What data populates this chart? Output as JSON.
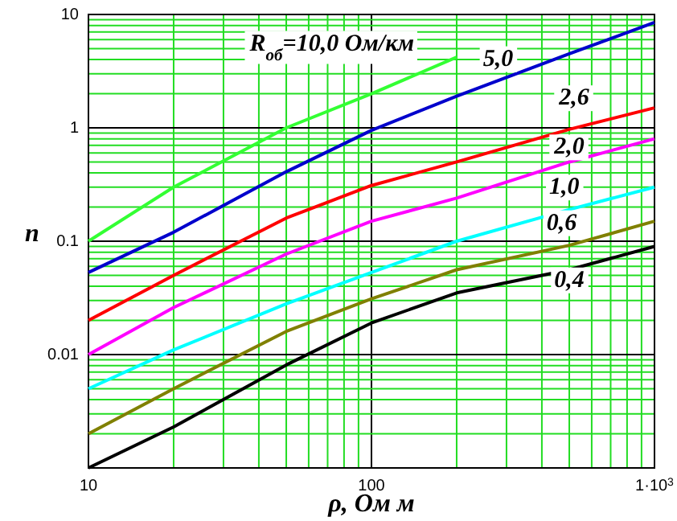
{
  "chart_data": {
    "type": "line",
    "xlabel": "ρ, Ом м",
    "ylabel": "n",
    "log": "xy",
    "grid": true,
    "marker": "none",
    "line_style": "solid",
    "xlim": [
      10,
      1000
    ],
    "ylim": [
      0.001,
      10
    ],
    "xticks": [
      10,
      {
        "value": 20,
        "label": null
      },
      {
        "value": 30,
        "label": null
      },
      {
        "value": 40,
        "label": null
      },
      {
        "value": 50,
        "label": null
      },
      {
        "value": 60,
        "label": null
      },
      {
        "value": 70,
        "label": null
      },
      {
        "value": 80,
        "label": null
      },
      {
        "value": 90,
        "label": null
      },
      100,
      {
        "value": 200,
        "label": null
      },
      {
        "value": 300,
        "label": null
      },
      {
        "value": 400,
        "label": null
      },
      {
        "value": 500,
        "label": null
      },
      {
        "value": 600,
        "label": null
      },
      {
        "value": 700,
        "label": null
      },
      {
        "value": 800,
        "label": null
      },
      {
        "value": 900,
        "label": null
      },
      {
        "value": 1000,
        "label": "1·10$^{3}$"
      }
    ],
    "yticks": [
      {
        "value": 0.001,
        "label": null
      },
      {
        "value": 0.002,
        "label": null
      },
      {
        "value": 0.003,
        "label": null
      },
      {
        "value": 0.004,
        "label": null
      },
      {
        "value": 0.005,
        "label": null
      },
      {
        "value": 0.006,
        "label": null
      },
      {
        "value": 0.007,
        "label": null
      },
      {
        "value": 0.008,
        "label": null
      },
      {
        "value": 0.009,
        "label": null
      },
      0.01,
      {
        "value": 0.02,
        "label": null
      },
      {
        "value": 0.03,
        "label": null
      },
      {
        "value": 0.04,
        "label": null
      },
      {
        "value": 0.05,
        "label": null
      },
      {
        "value": 0.06,
        "label": null
      },
      {
        "value": 0.07,
        "label": null
      },
      {
        "value": 0.08,
        "label": null
      },
      {
        "value": 0.09,
        "label": null
      },
      0.1,
      {
        "value": 0.2,
        "label": null
      },
      {
        "value": 0.3,
        "label": null
      },
      {
        "value": 0.4,
        "label": null
      },
      {
        "value": 0.5,
        "label": null
      },
      {
        "value": 0.6,
        "label": null
      },
      {
        "value": 0.7,
        "label": null
      },
      {
        "value": 0.8,
        "label": null
      },
      {
        "value": 0.9,
        "label": null
      },
      1,
      {
        "value": 2,
        "label": null
      },
      {
        "value": 3,
        "label": null
      },
      {
        "value": 4,
        "label": null
      },
      {
        "value": 5,
        "label": null
      },
      {
        "value": 6,
        "label": null
      },
      {
        "value": 7,
        "label": null
      },
      {
        "value": 8,
        "label": null
      },
      {
        "value": 9,
        "label": null
      },
      10
    ],
    "x": [
      10,
      20,
      50,
      100,
      200,
      500,
      1000
    ],
    "series": [
      {
        "color": "#33ff33",
        "values": [
          0.1,
          0.3,
          1.0,
          2.0,
          4.2,
          null,
          null
        ]
      },
      {
        "color": "#0000cc",
        "values": [
          0.053,
          0.12,
          0.41,
          0.95,
          1.9,
          4.5,
          8.5
        ]
      },
      {
        "color": "#ff0000",
        "values": [
          0.02,
          0.05,
          0.16,
          0.31,
          0.5,
          0.97,
          1.5
        ]
      },
      {
        "color": "#ff00ff",
        "values": [
          0.01,
          0.026,
          0.077,
          0.15,
          0.24,
          0.5,
          0.8
        ]
      },
      {
        "color": "#00ffff",
        "values": [
          0.005,
          0.011,
          0.028,
          0.053,
          0.1,
          0.19,
          0.3
        ]
      },
      {
        "color": "#808000",
        "values": [
          0.002,
          0.005,
          0.016,
          0.031,
          0.056,
          0.092,
          0.15
        ]
      },
      {
        "color": "#000000",
        "values": [
          0.001,
          0.0023,
          0.0081,
          0.019,
          0.035,
          0.056,
          0.09
        ]
      }
    ],
    "annotations": [
      "R$_{об}$=10,0 Ом/км",
      {
        "text": "5,0",
        "x": 280,
        "y": 4.2
      },
      {
        "text": "2,6",
        "x": 520,
        "y": 1.9
      },
      {
        "text": "2,0",
        "x": 500,
        "y": 0.7
      },
      {
        "text": "1,0",
        "x": 480,
        "y": 0.31
      },
      {
        "text": "0,6",
        "x": 470,
        "y": 0.15
      },
      {
        "text": "0,4",
        "x": 500,
        "y": 0.047
      }
    ]
  }
}
